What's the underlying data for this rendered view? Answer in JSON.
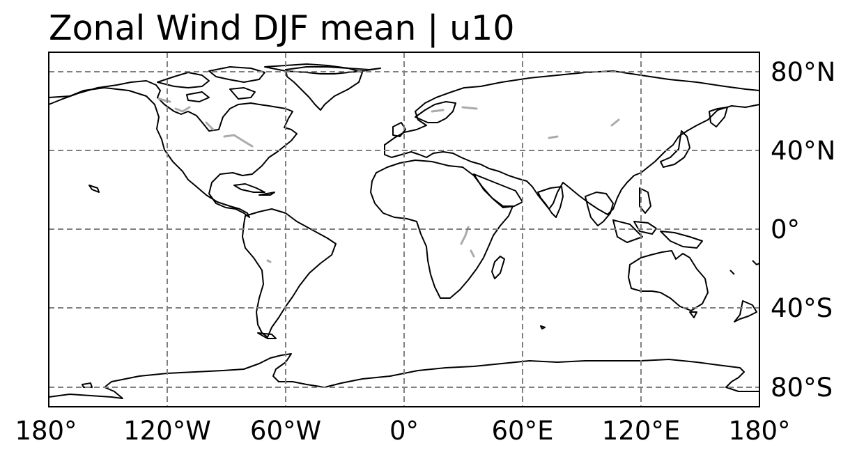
{
  "title": "Zonal Wind DJF mean | u10",
  "map": {
    "projection": "PlateCarree",
    "extent": {
      "lon": [
        -180,
        180
      ],
      "lat": [
        -90,
        90
      ]
    },
    "gridlines": {
      "longitudes": [
        -180,
        -120,
        -60,
        0,
        60,
        120,
        180
      ],
      "latitudes": [
        -80,
        -40,
        0,
        40,
        80
      ],
      "style": "dashed",
      "color": "#808080"
    },
    "coastline_color": "#000000",
    "lakes_color": "#aaaaaa",
    "lon_tick_labels": [
      "180°",
      "120°W",
      "60°W",
      "0°",
      "60°E",
      "120°E",
      "180°"
    ],
    "lat_tick_labels": [
      "80°N",
      "40°N",
      "0°",
      "40°S",
      "80°S"
    ],
    "lat_labels_side": "right",
    "lon_labels_side": "bottom"
  }
}
